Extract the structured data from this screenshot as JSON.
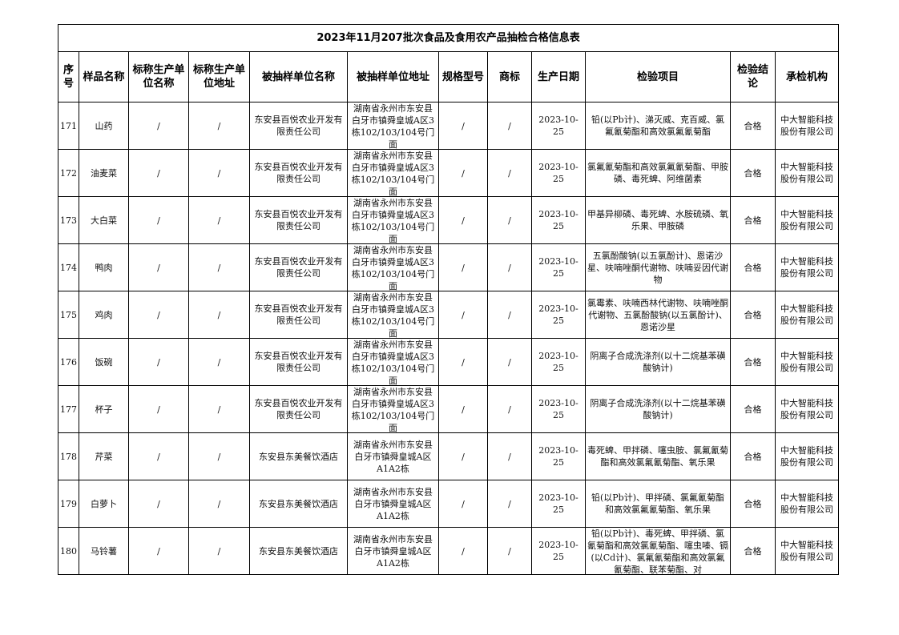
{
  "title": "2023年11月207批次食品及食用农产品抽检合格信息表",
  "headers": [
    "序号",
    "样品名称",
    "标称生产单位名称",
    "标称生产单位地址",
    "被抽样单位名称",
    "被抽样单位地址",
    "规格型号",
    "商标",
    "生产日期",
    "检验项目",
    "检验结论",
    "承检机构"
  ],
  "rows": [
    {
      "no": "171",
      "name": "山药",
      "mfr": "/",
      "mfr_addr": "/",
      "unit": "东安县百悦农业开发有限责任公司",
      "addr": "湖南省永州市东安县白牙市镇舜皇城A区3栋102/103/104号门面",
      "spec": "/",
      "brand": "/",
      "date": "2023-10-25",
      "items": "铅(以Pb计)、涕灭威、克百威、氯氟氰菊酯和高效氯氟氰菊酯",
      "result": "合格",
      "lab": "中大智能科技股份有限公司"
    },
    {
      "no": "172",
      "name": "油麦菜",
      "mfr": "/",
      "mfr_addr": "/",
      "unit": "东安县百悦农业开发有限责任公司",
      "addr": "湖南省永州市东安县白牙市镇舜皇城A区3栋102/103/104号门面",
      "spec": "/",
      "brand": "/",
      "date": "2023-10-25",
      "items": "氯氟氰菊酯和高效氯氟氰菊酯、甲胺磷、毒死蜱、阿维菌素",
      "result": "合格",
      "lab": "中大智能科技股份有限公司"
    },
    {
      "no": "173",
      "name": "大白菜",
      "mfr": "/",
      "mfr_addr": "/",
      "unit": "东安县百悦农业开发有限责任公司",
      "addr": "湖南省永州市东安县白牙市镇舜皇城A区3栋102/103/104号门面",
      "spec": "/",
      "brand": "/",
      "date": "2023-10-25",
      "items": "甲基异柳磷、毒死蜱、水胺硫磷、氧乐果、甲胺磷",
      "result": "合格",
      "lab": "中大智能科技股份有限公司"
    },
    {
      "no": "174",
      "name": "鸭肉",
      "mfr": "/",
      "mfr_addr": "/",
      "unit": "东安县百悦农业开发有限责任公司",
      "addr": "湖南省永州市东安县白牙市镇舜皇城A区3栋102/103/104号门面",
      "spec": "/",
      "brand": "/",
      "date": "2023-10-25",
      "items": "五氯酚酸钠(以五氯酚计)、恩诺沙星、呋喃唑酮代谢物、呋喃妥因代谢物",
      "result": "合格",
      "lab": "中大智能科技股份有限公司"
    },
    {
      "no": "175",
      "name": "鸡肉",
      "mfr": "/",
      "mfr_addr": "/",
      "unit": "东安县百悦农业开发有限责任公司",
      "addr": "湖南省永州市东安县白牙市镇舜皇城A区3栋102/103/104号门面",
      "spec": "/",
      "brand": "/",
      "date": "2023-10-25",
      "items": "氯霉素、呋喃西林代谢物、呋喃唑酮代谢物、五氯酚酸钠(以五氯酚计)、恩诺沙星",
      "result": "合格",
      "lab": "中大智能科技股份有限公司"
    },
    {
      "no": "176",
      "name": "饭碗",
      "mfr": "/",
      "mfr_addr": "/",
      "unit": "东安县百悦农业开发有限责任公司",
      "addr": "湖南省永州市东安县白牙市镇舜皇城A区3栋102/103/104号门面",
      "spec": "/",
      "brand": "/",
      "date": "2023-10-25",
      "items": "阴离子合成洗涤剂(以十二烷基苯磺酸钠计)",
      "result": "合格",
      "lab": "中大智能科技股份有限公司"
    },
    {
      "no": "177",
      "name": "杯子",
      "mfr": "/",
      "mfr_addr": "/",
      "unit": "东安县百悦农业开发有限责任公司",
      "addr": "湖南省永州市东安县白牙市镇舜皇城A区3栋102/103/104号门面",
      "spec": "/",
      "brand": "/",
      "date": "2023-10-25",
      "items": "阴离子合成洗涤剂(以十二烷基苯磺酸钠计)",
      "result": "合格",
      "lab": "中大智能科技股份有限公司"
    },
    {
      "no": "178",
      "name": "芹菜",
      "mfr": "/",
      "mfr_addr": "/",
      "unit": "东安县东美餐饮酒店",
      "addr": "湖南省永州市东安县白牙市镇舜皇城A区A1A2栋",
      "spec": "/",
      "brand": "/",
      "date": "2023-10-25",
      "items": "毒死蜱、甲拌磷、噻虫胺、氯氟氰菊酯和高效氯氟氰菊酯、氧乐果",
      "result": "合格",
      "lab": "中大智能科技股份有限公司"
    },
    {
      "no": "179",
      "name": "白萝卜",
      "mfr": "/",
      "mfr_addr": "/",
      "unit": "东安县东美餐饮酒店",
      "addr": "湖南省永州市东安县白牙市镇舜皇城A区A1A2栋",
      "spec": "/",
      "brand": "/",
      "date": "2023-10-25",
      "items": "铅(以Pb计)、甲拌磷、氯氟氰菊酯和高效氯氟氰菊酯、氧乐果",
      "result": "合格",
      "lab": "中大智能科技股份有限公司"
    },
    {
      "no": "180",
      "name": "马铃薯",
      "mfr": "/",
      "mfr_addr": "/",
      "unit": "东安县东美餐饮酒店",
      "addr": "湖南省永州市东安县白牙市镇舜皇城A区A1A2栋",
      "spec": "/",
      "brand": "/",
      "date": "2023-10-25",
      "items": "铅(以Pb计)、毒死蜱、甲拌磷、氯氰菊酯和高效氯氰菊酯、噻虫嗪、镉(以Cd计)、氯氟氰菊酯和高效氯氟氰菊酯、联苯菊酯、对",
      "result": "合格",
      "lab": "中大智能科技股份有限公司"
    }
  ]
}
